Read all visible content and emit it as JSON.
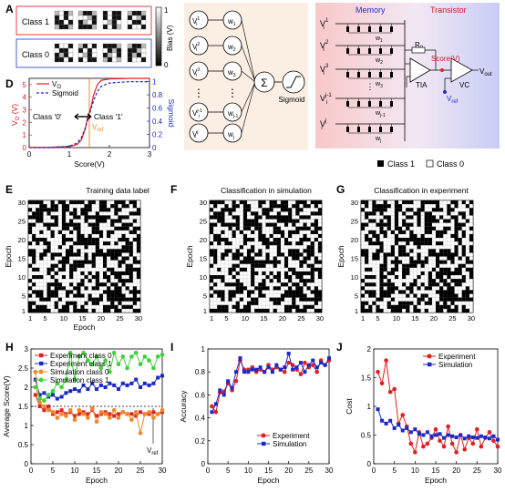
{
  "panels": {
    "A": {
      "letter": "A",
      "class1_label": "Class 1",
      "class0_label": "Class 0",
      "colorbar_label": "Bias (V)",
      "colorbar_max": "1",
      "colorbar_min": "0",
      "class1_patterns": [
        [
          0,
          0,
          1,
          0,
          1,
          0,
          1,
          0,
          1,
          1,
          0,
          1,
          0,
          1,
          1,
          0
        ],
        [
          0,
          1,
          1,
          0,
          0,
          0,
          0,
          1,
          1,
          0,
          0,
          1,
          1,
          1,
          1,
          0
        ],
        [
          1,
          0,
          1,
          1,
          1,
          0,
          1,
          1,
          0,
          0,
          1,
          0,
          1,
          0,
          1,
          0
        ],
        [
          0,
          1,
          1,
          0,
          1,
          0,
          0,
          1,
          0,
          1,
          1,
          0,
          1,
          0,
          0,
          1
        ]
      ],
      "class0_patterns": [
        [
          1,
          0,
          0,
          1,
          0,
          1,
          1,
          0,
          1,
          0,
          1,
          0,
          1,
          1,
          0,
          1
        ],
        [
          0,
          1,
          0,
          1,
          1,
          0,
          1,
          0,
          0,
          0,
          1,
          0,
          1,
          0,
          1,
          1
        ],
        [
          1,
          1,
          1,
          0,
          0,
          1,
          0,
          1,
          1,
          0,
          0,
          1,
          0,
          1,
          0,
          0
        ],
        [
          0,
          1,
          1,
          0,
          1,
          1,
          0,
          0,
          1,
          0,
          1,
          0,
          1,
          0,
          0,
          1
        ]
      ]
    },
    "B": {
      "letter": "B",
      "inputs": [
        "V_i^1",
        "V_i^2",
        "V_i^3",
        "⋮",
        "V_i^{j-1}",
        "V_i^j"
      ],
      "weights": [
        "w_1",
        "w_2",
        "w_3",
        "⋮",
        "w_{j-1}",
        "w_j"
      ],
      "sum_symbol": "Σ",
      "sigmoid_label": "Sigmoid"
    },
    "C": {
      "letter": "C",
      "memory_label": "Memory",
      "transistor_label": "Transistor",
      "r0_label": "R₀",
      "score_label": "Score(V)",
      "tia_label": "TIA",
      "vc_label": "VC",
      "vout_label": "V",
      "vout_sub": "out",
      "vref_label": "V",
      "vref_sub": "ref",
      "weights": [
        "w",
        "w",
        "w",
        "w",
        "w"
      ],
      "weight_subs": [
        "1",
        "2",
        "3",
        "j-1",
        "j"
      ]
    },
    "D": {
      "letter": "D",
      "legend_v0": "V",
      "legend_v0_sub": "O",
      "legend_sigmoid": "Sigmoid",
      "class0_text": "Class '0'",
      "class1_text": "Class '1'",
      "vref_text": "V",
      "vref_sub": "ref",
      "xlabel": "Score(V)",
      "ylabel_left": "V",
      "ylabel_left_sub": "O",
      "ylabel_left_unit": " (V)",
      "ylabel_right": "Sigmoid",
      "x_ticks": [
        "0",
        "1",
        "2",
        "3"
      ],
      "y_left_ticks": [
        "0",
        "1",
        "2",
        "3",
        "4",
        "5"
      ],
      "y_right_ticks": [
        "0",
        "0.2",
        "0.4",
        "0.6",
        "0.8",
        "1"
      ]
    },
    "legend_top": {
      "class1": "Class 1",
      "class0": "Class 0"
    },
    "E": {
      "letter": "E",
      "title": "Training data label",
      "xlabel": "Epoch",
      "ylabel": "Epoch"
    },
    "F": {
      "letter": "F",
      "title": "Classification in simulation",
      "xlabel": "",
      "ylabel": "Epoch"
    },
    "G": {
      "letter": "G",
      "title": "Classification in experiment",
      "xlabel": "",
      "ylabel": "Epoch"
    },
    "grid_ticks": [
      "1",
      "5",
      "10",
      "15",
      "20",
      "25",
      "30"
    ],
    "H": {
      "letter": "H"
    },
    "I": {
      "letter": "I"
    },
    "J": {
      "letter": "J"
    }
  },
  "chart_data": [
    {
      "type": "line",
      "panel": "D",
      "xlabel": "Score(V)",
      "ylabel": "V_O (V)",
      "ylabel_right": "Sigmoid",
      "xlim": [
        0,
        3
      ],
      "ylim": [
        0,
        5.5
      ],
      "ylim_right": [
        0,
        1.05
      ],
      "vref_x": 1.5,
      "series": [
        {
          "name": "V_O",
          "color": "#e0201e",
          "style": "solid",
          "x": [
            0,
            0.5,
            1.0,
            1.2,
            1.3,
            1.4,
            1.45,
            1.5,
            1.55,
            1.6,
            1.7,
            1.8,
            2.0,
            2.5,
            3.0
          ],
          "y": [
            0.02,
            0.03,
            0.08,
            0.25,
            0.6,
            1.5,
            2.3,
            2.8,
            3.3,
            4.1,
            5.0,
            5.35,
            5.45,
            5.5,
            5.5
          ]
        },
        {
          "name": "Sigmoid",
          "color": "#1b28c8",
          "style": "dashed",
          "x": [
            0,
            0.5,
            1.0,
            1.2,
            1.3,
            1.4,
            1.45,
            1.5,
            1.55,
            1.6,
            1.7,
            1.8,
            2.0,
            2.5,
            3.0
          ],
          "y": [
            0.0,
            0.0,
            0.02,
            0.07,
            0.15,
            0.3,
            0.4,
            0.5,
            0.6,
            0.7,
            0.85,
            0.93,
            0.98,
            1.0,
            1.0
          ]
        }
      ]
    },
    {
      "type": "heatmap",
      "panel": "E",
      "title": "Training data label",
      "rows": 30,
      "cols": 30,
      "seed": 11,
      "black_fraction": 0.52
    },
    {
      "type": "heatmap",
      "panel": "F",
      "title": "Classification in simulation",
      "rows": 30,
      "cols": 30,
      "seed": 11,
      "flip_fraction": 0.1
    },
    {
      "type": "heatmap",
      "panel": "G",
      "title": "Classification in experiment",
      "rows": 30,
      "cols": 30,
      "seed": 11,
      "flip_fraction": 0.14
    },
    {
      "type": "line",
      "panel": "H",
      "xlabel": "Epoch",
      "ylabel": "Average Score(V)",
      "xlim": [
        0,
        30
      ],
      "ylim": [
        0,
        3
      ],
      "x_ticks": [
        "0",
        "5",
        "10",
        "15",
        "20",
        "25",
        "30"
      ],
      "y_ticks": [
        "0",
        "0.5",
        "1",
        "1.5",
        "2",
        "2.5",
        "3"
      ],
      "vref_y": 1.5,
      "vref_label": "V",
      "vref_sub": "ref",
      "series": [
        {
          "name": "Experiment class 0",
          "color": "#e02020",
          "marker": "square",
          "y": [
            1.8,
            1.5,
            1.4,
            1.5,
            1.3,
            1.35,
            1.4,
            1.3,
            1.35,
            1.25,
            1.3,
            1.35,
            1.3,
            1.4,
            1.25,
            1.3,
            1.35,
            1.3,
            1.25,
            1.3,
            1.35,
            1.3,
            1.3,
            1.25,
            1.35,
            1.3,
            1.3,
            1.35,
            1.3,
            1.35
          ]
        },
        {
          "name": "Experiment class 1",
          "color": "#1b28c8",
          "marker": "square",
          "y": [
            2.2,
            1.8,
            1.85,
            1.75,
            1.8,
            1.7,
            1.75,
            1.85,
            1.9,
            1.95,
            1.9,
            2.05,
            1.95,
            2.1,
            1.95,
            2.05,
            2.0,
            2.1,
            2.05,
            1.95,
            2.1,
            2.05,
            2.1,
            2.2,
            2.0,
            2.1,
            2.05,
            2.1,
            2.25,
            2.3
          ]
        },
        {
          "name": "Simulation class 0",
          "color": "#f0882a",
          "marker": "circle",
          "y": [
            2.4,
            1.6,
            1.5,
            1.4,
            1.35,
            1.2,
            1.3,
            1.25,
            1.4,
            1.15,
            1.4,
            1.3,
            1.2,
            1.45,
            1.1,
            1.35,
            1.3,
            1.2,
            1.4,
            1.2,
            1.35,
            1.3,
            1.15,
            1.35,
            0.8,
            1.3,
            1.35,
            1.2,
            1.3,
            1.4
          ]
        },
        {
          "name": "Simulation class 1",
          "color": "#3cd23c",
          "marker": "circle",
          "y": [
            2.0,
            1.7,
            1.65,
            1.8,
            1.9,
            2.1,
            2.0,
            2.2,
            2.9,
            2.2,
            2.8,
            2.9,
            2.7,
            2.6,
            2.8,
            2.5,
            2.7,
            2.4,
            2.9,
            2.6,
            2.8,
            2.5,
            2.8,
            2.9,
            2.6,
            2.8,
            2.7,
            2.5,
            2.8,
            2.85
          ]
        }
      ]
    },
    {
      "type": "line",
      "panel": "I",
      "xlabel": "Epoch",
      "ylabel": "Accuracy",
      "xlim": [
        0,
        30
      ],
      "ylim": [
        0,
        1
      ],
      "x_ticks": [
        "0",
        "5",
        "10",
        "15",
        "20",
        "25",
        "30"
      ],
      "y_ticks": [
        "0",
        "0.2",
        "0.4",
        "0.6",
        "0.8",
        "1"
      ],
      "series": [
        {
          "name": "Experiment",
          "color": "#e02020",
          "marker": "circle",
          "y": [
            0.5,
            0.45,
            0.62,
            0.63,
            0.7,
            0.64,
            0.72,
            0.9,
            0.82,
            0.82,
            0.84,
            0.8,
            0.82,
            0.8,
            0.86,
            0.82,
            0.84,
            0.82,
            0.8,
            0.88,
            0.86,
            0.82,
            0.78,
            0.88,
            0.84,
            0.86,
            0.8,
            0.9,
            0.86,
            0.9
          ]
        },
        {
          "name": "Simulation",
          "color": "#1b28c8",
          "marker": "square",
          "y": [
            0.45,
            0.52,
            0.64,
            0.6,
            0.72,
            0.66,
            0.8,
            0.92,
            0.8,
            0.8,
            0.82,
            0.82,
            0.84,
            0.8,
            0.84,
            0.8,
            0.86,
            0.82,
            0.84,
            0.96,
            0.82,
            0.84,
            0.88,
            0.8,
            0.86,
            0.9,
            0.84,
            0.88,
            0.86,
            0.92
          ]
        }
      ]
    },
    {
      "type": "line",
      "panel": "J",
      "xlabel": "Epoch",
      "ylabel": "Cost",
      "xlim": [
        0,
        30
      ],
      "ylim": [
        0,
        2
      ],
      "x_ticks": [
        "0",
        "5",
        "10",
        "15",
        "20",
        "25",
        "30"
      ],
      "y_ticks": [
        "0",
        "0.5",
        "1",
        "1.5",
        "2"
      ],
      "series": [
        {
          "name": "Experiment",
          "color": "#e02020",
          "marker": "circle",
          "y": [
            1.6,
            1.4,
            1.8,
            1.25,
            1.3,
            0.7,
            0.85,
            0.65,
            0.35,
            0.2,
            0.55,
            0.3,
            0.35,
            0.45,
            0.6,
            0.4,
            0.3,
            0.65,
            0.35,
            0.2,
            0.5,
            0.25,
            0.45,
            0.35,
            0.6,
            0.3,
            0.45,
            0.55,
            0.4,
            0.3
          ]
        },
        {
          "name": "Simulation",
          "color": "#1b28c8",
          "marker": "square",
          "y": [
            0.95,
            0.75,
            0.7,
            0.75,
            0.62,
            0.68,
            0.58,
            0.62,
            0.55,
            0.6,
            0.52,
            0.5,
            0.55,
            0.48,
            0.5,
            0.52,
            0.45,
            0.5,
            0.48,
            0.46,
            0.5,
            0.44,
            0.48,
            0.46,
            0.45,
            0.48,
            0.46,
            0.44,
            0.48,
            0.42
          ]
        }
      ]
    }
  ]
}
